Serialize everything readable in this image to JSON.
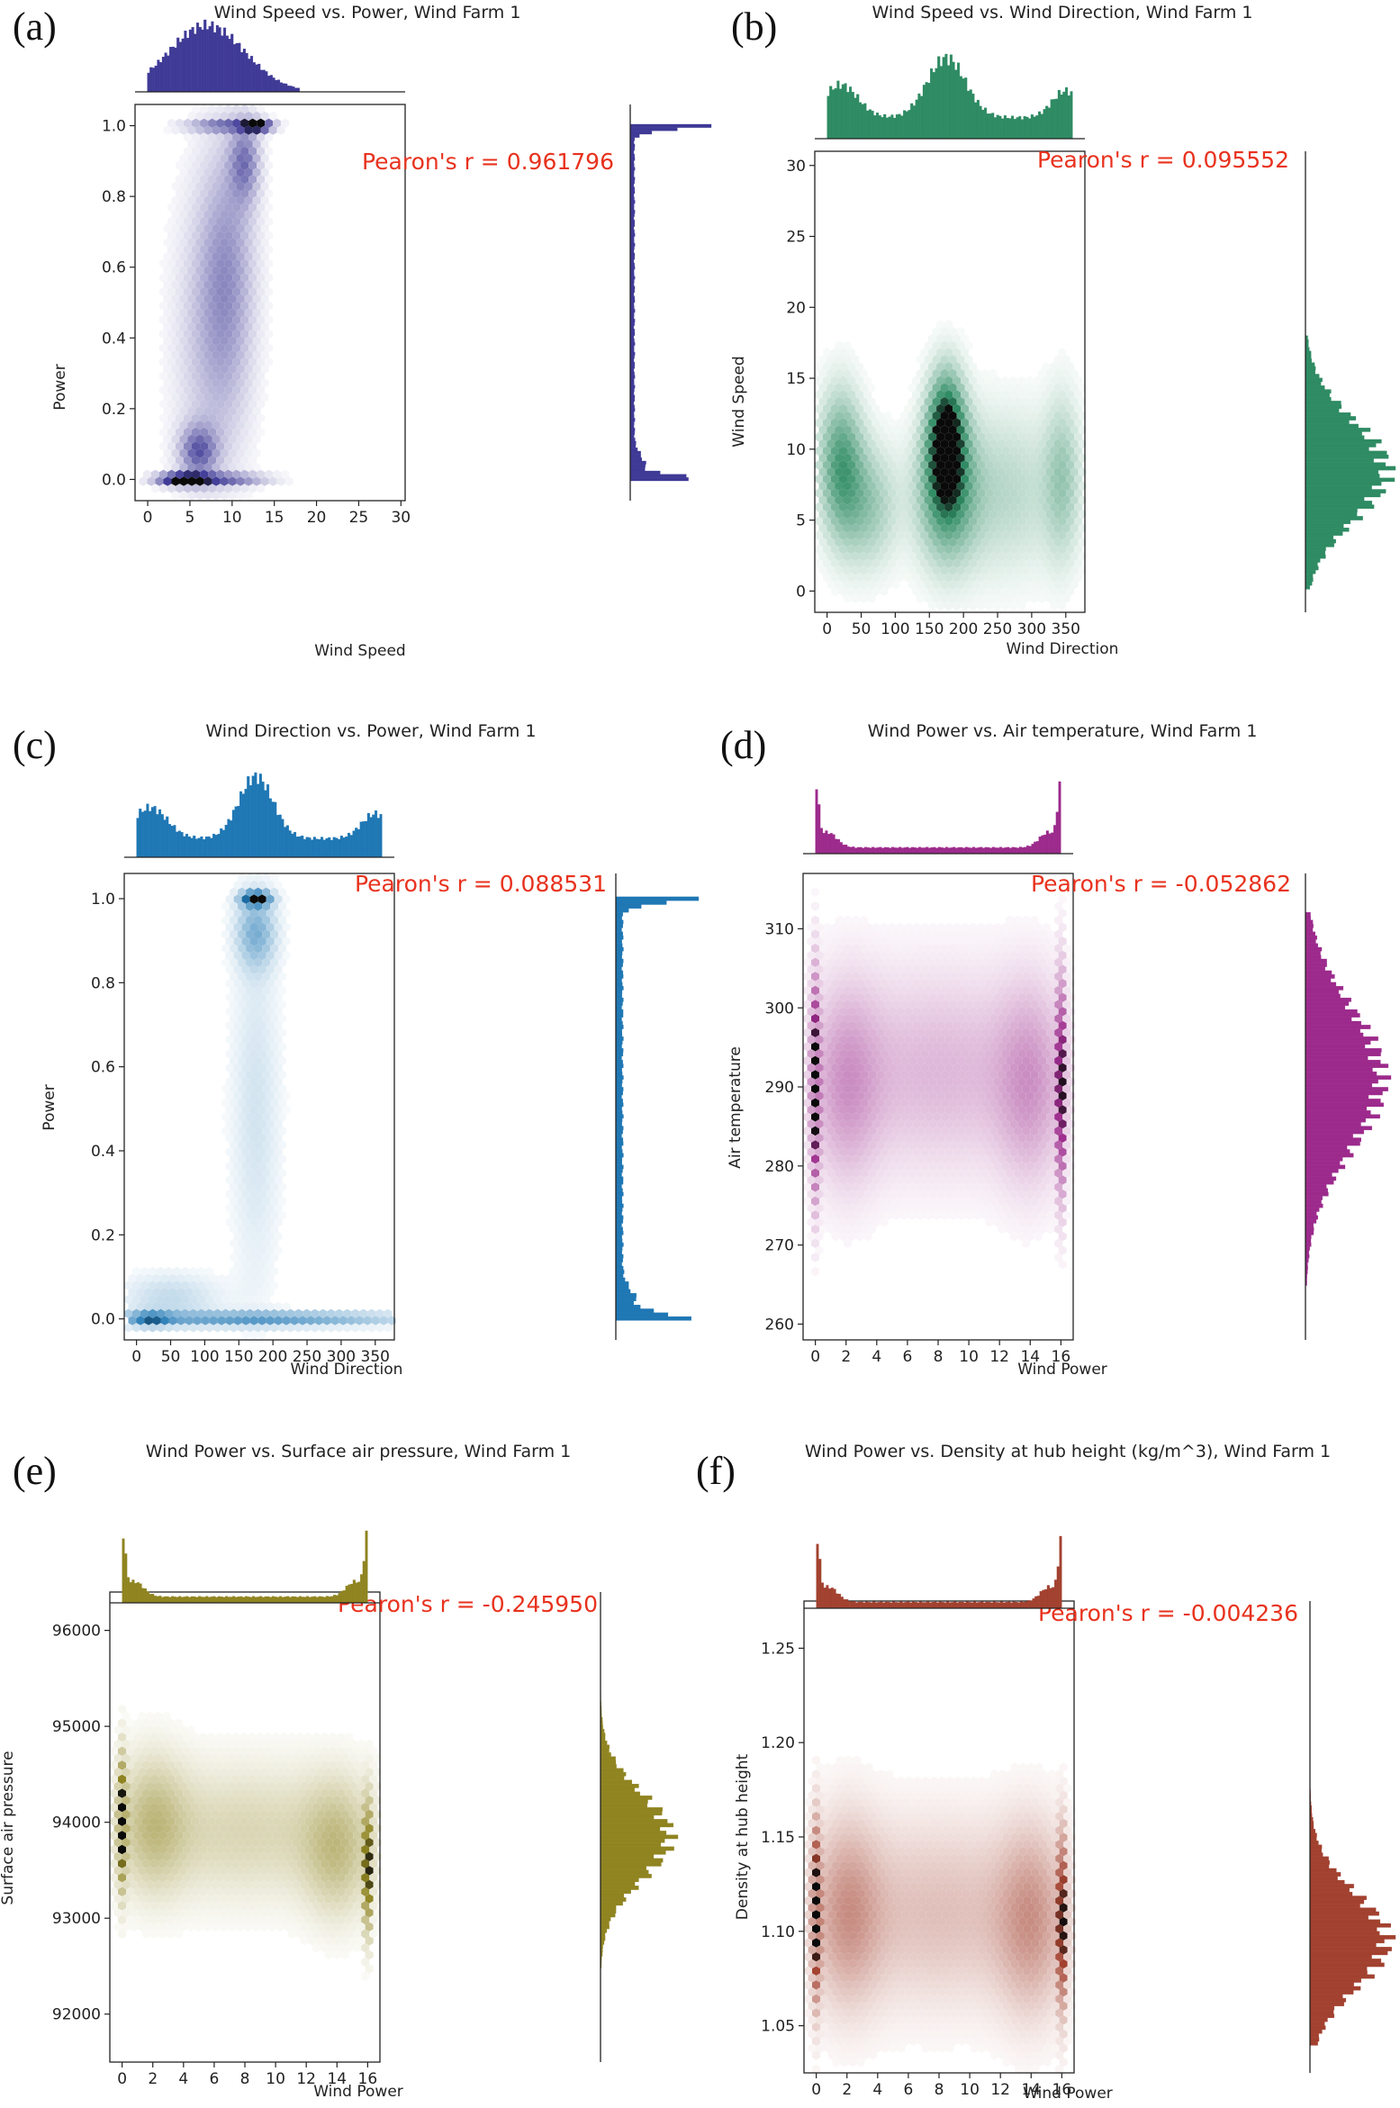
{
  "chart_data": [
    {
      "type": "hexbin",
      "panel_label": "(a)",
      "title": "Wind Speed vs. Power, Wind Farm 1",
      "xlabel": "Wind Speed",
      "ylabel": "Power",
      "xlim": [
        -1.5,
        30.5
      ],
      "ylim": [
        -0.06,
        1.06
      ],
      "xticks": [
        0,
        5,
        10,
        15,
        20,
        25,
        30
      ],
      "yticks": [
        0.0,
        0.2,
        0.4,
        0.6,
        0.8,
        1.0
      ],
      "xtick_labels": [
        "0",
        "5",
        "10",
        "15",
        "20",
        "25",
        "30"
      ],
      "ytick_labels": [
        "0.0",
        "0.2",
        "0.4",
        "0.6",
        "0.8",
        "1.0"
      ],
      "pearson": "Pearon's r = 0.961796",
      "color": "#3f3a96",
      "x_marginal": {
        "range": [
          0,
          18
        ],
        "peaks": [
          [
            7,
            4.5,
            1.0
          ]
        ]
      },
      "y_marginal": {
        "range": [
          0,
          1
        ],
        "peaks": [
          [
            1.0,
            0.012,
            1.0
          ],
          [
            0.0,
            0.012,
            0.85
          ],
          [
            0.04,
            0.03,
            0.15
          ]
        ],
        "base": 0.06
      },
      "clusters": [
        {
          "x": 4,
          "y": 0.0,
          "sx": 2.0,
          "sy": 0.012,
          "w": 1.0
        },
        {
          "x": 9,
          "y": 0.0,
          "sx": 3.5,
          "sy": 0.012,
          "w": 0.55
        },
        {
          "x": 13,
          "y": 1.0,
          "sx": 1.2,
          "sy": 0.012,
          "w": 1.0
        },
        {
          "x": 9,
          "y": 1.0,
          "sx": 3.0,
          "sy": 0.012,
          "w": 0.5
        },
        {
          "x": 11.5,
          "y": 0.9,
          "sx": 1.2,
          "sy": 0.08,
          "w": 0.45
        },
        {
          "x": 9.5,
          "y": 0.6,
          "sx": 2.2,
          "sy": 0.25,
          "w": 0.3
        },
        {
          "x": 6,
          "y": 0.08,
          "sx": 1.5,
          "sy": 0.05,
          "w": 0.55
        },
        {
          "x": 7.5,
          "y": 0.4,
          "sx": 3.0,
          "sy": 0.3,
          "w": 0.22
        }
      ]
    },
    {
      "type": "hexbin",
      "panel_label": "(b)",
      "title": "Wind Speed vs. Wind Direction, Wind Farm 1",
      "xlabel": "Wind Direction",
      "ylabel": "Wind Speed",
      "xlim": [
        -18,
        378
      ],
      "ylim": [
        -1.5,
        31
      ],
      "xticks": [
        0,
        50,
        100,
        150,
        200,
        250,
        300,
        350
      ],
      "yticks": [
        0,
        5,
        10,
        15,
        20,
        25,
        30
      ],
      "xtick_labels": [
        "0",
        "50",
        "100",
        "150",
        "200",
        "250",
        "300",
        "350"
      ],
      "ytick_labels": [
        "0",
        "5",
        "10",
        "15",
        "20",
        "25",
        "30"
      ],
      "pearson": "Pearon's r = 0.095552",
      "color": "#2e8b63",
      "x_marginal": {
        "range": [
          0,
          360
        ],
        "peaks": [
          [
            20,
            25,
            0.55
          ],
          [
            175,
            28,
            1.0
          ],
          [
            350,
            20,
            0.45
          ]
        ],
        "base": 0.35
      },
      "y_marginal": {
        "range": [
          0,
          18
        ],
        "peaks": [
          [
            8.5,
            3.5,
            1.0
          ]
        ]
      },
      "clusters": [
        {
          "x": 175,
          "y": 11,
          "sx": 18,
          "sy": 3.0,
          "w": 1.0
        },
        {
          "x": 175,
          "y": 7,
          "sx": 30,
          "sy": 3.5,
          "w": 0.6
        },
        {
          "x": 20,
          "y": 9,
          "sx": 22,
          "sy": 3.5,
          "w": 0.6
        },
        {
          "x": 60,
          "y": 6,
          "sx": 30,
          "sy": 3.0,
          "w": 0.35
        },
        {
          "x": 260,
          "y": 7,
          "sx": 60,
          "sy": 4.0,
          "w": 0.25
        },
        {
          "x": 345,
          "y": 8,
          "sx": 18,
          "sy": 4.0,
          "w": 0.3
        }
      ]
    },
    {
      "type": "hexbin",
      "panel_label": "(c)",
      "title": "Wind Direction vs. Power, Wind Farm 1",
      "xlabel": "Wind Direction",
      "ylabel": "Power",
      "xlim": [
        -18,
        378
      ],
      "ylim": [
        -0.05,
        1.06
      ],
      "xticks": [
        0,
        50,
        100,
        150,
        200,
        250,
        300,
        350
      ],
      "yticks": [
        0.0,
        0.2,
        0.4,
        0.6,
        0.8,
        1.0
      ],
      "xtick_labels": [
        "0",
        "50",
        "100",
        "150",
        "200",
        "250",
        "300",
        "350"
      ],
      "ytick_labels": [
        "0.0",
        "0.2",
        "0.4",
        "0.6",
        "0.8",
        "1.0"
      ],
      "pearson": "Pearon's r = 0.088531",
      "color": "#1f77b4",
      "x_marginal": {
        "range": [
          0,
          360
        ],
        "peaks": [
          [
            20,
            25,
            0.5
          ],
          [
            175,
            25,
            1.0
          ],
          [
            350,
            20,
            0.4
          ]
        ],
        "base": 0.3
      },
      "y_marginal": {
        "range": [
          0,
          1
        ],
        "peaks": [
          [
            1.0,
            0.012,
            1.0
          ],
          [
            0.0,
            0.012,
            0.95
          ],
          [
            0.04,
            0.03,
            0.2
          ]
        ],
        "base": 0.1
      },
      "clusters": [
        {
          "x": 175,
          "y": 1.0,
          "sx": 15,
          "sy": 0.012,
          "w": 1.0
        },
        {
          "x": 175,
          "y": 0.92,
          "sx": 20,
          "sy": 0.06,
          "w": 0.4
        },
        {
          "x": 180,
          "y": 0.0,
          "sx": 150,
          "sy": 0.012,
          "w": 0.55
        },
        {
          "x": 20,
          "y": 0.0,
          "sx": 20,
          "sy": 0.012,
          "w": 0.5
        },
        {
          "x": 175,
          "y": 0.5,
          "sx": 25,
          "sy": 0.3,
          "w": 0.15
        },
        {
          "x": 50,
          "y": 0.05,
          "sx": 50,
          "sy": 0.04,
          "w": 0.2
        }
      ]
    },
    {
      "type": "hexbin",
      "panel_label": "(d)",
      "title": "Wind Power vs. Air temperature, Wind Farm 1",
      "xlabel": "Wind Power",
      "ylabel": "Air temperature",
      "xlim": [
        -0.8,
        16.8
      ],
      "ylim": [
        258,
        317
      ],
      "xticks": [
        0,
        2,
        4,
        6,
        8,
        10,
        12,
        14,
        16
      ],
      "yticks": [
        260,
        270,
        280,
        290,
        300,
        310
      ],
      "xtick_labels": [
        "0",
        "2",
        "4",
        "6",
        "8",
        "10",
        "12",
        "14",
        "16"
      ],
      "ytick_labels": [
        "260",
        "270",
        "280",
        "290",
        "300",
        "310"
      ],
      "pearson": "Pearon's r = -0.052862",
      "color": "#9c2a8c",
      "x_marginal": {
        "range": [
          0,
          16
        ],
        "peaks": [
          [
            0,
            0.2,
            1.0
          ],
          [
            16,
            0.2,
            1.0
          ],
          [
            0.8,
            0.6,
            0.25
          ],
          [
            15.2,
            0.6,
            0.25
          ]
        ],
        "base": 0.1
      },
      "y_marginal": {
        "range": [
          265,
          312
        ],
        "peaks": [
          [
            291,
            9,
            1.0
          ]
        ]
      },
      "clusters": [
        {
          "x": 0,
          "y": 290,
          "sx": 0.15,
          "sy": 9,
          "w": 1.0
        },
        {
          "x": 16,
          "y": 290,
          "sx": 0.15,
          "sy": 9,
          "w": 1.0
        },
        {
          "x": 8,
          "y": 292,
          "sx": 6,
          "sy": 9,
          "w": 0.25
        },
        {
          "x": 2,
          "y": 290,
          "sx": 1.5,
          "sy": 9,
          "w": 0.25
        },
        {
          "x": 14,
          "y": 290,
          "sx": 1.5,
          "sy": 9,
          "w": 0.25
        }
      ]
    },
    {
      "type": "hexbin",
      "panel_label": "(e)",
      "title": "Wind Power vs. Surface air pressure, Wind Farm 1",
      "xlabel": "Wind Power",
      "ylabel": "Surface air pressure",
      "xlim": [
        -0.8,
        16.8
      ],
      "ylim": [
        91500,
        96400
      ],
      "xticks": [
        0,
        2,
        4,
        6,
        8,
        10,
        12,
        14,
        16
      ],
      "yticks": [
        92000,
        93000,
        94000,
        95000,
        96000
      ],
      "xtick_labels": [
        "0",
        "2",
        "4",
        "6",
        "8",
        "10",
        "12",
        "14",
        "16"
      ],
      "ytick_labels": [
        "92000",
        "93000",
        "94000",
        "95000",
        "96000"
      ],
      "pearson": "Pearon's r = -0.245950",
      "color": "#8f8420",
      "x_marginal": {
        "range": [
          0,
          16
        ],
        "peaks": [
          [
            0,
            0.2,
            1.0
          ],
          [
            16,
            0.2,
            1.0
          ],
          [
            0.8,
            0.6,
            0.25
          ],
          [
            15.2,
            0.6,
            0.25
          ]
        ],
        "base": 0.1
      },
      "y_marginal": {
        "range": [
          92500,
          95500
        ],
        "peaks": [
          [
            93850,
            450,
            1.0
          ]
        ]
      },
      "clusters": [
        {
          "x": 0,
          "y": 94000,
          "sx": 0.15,
          "sy": 450,
          "w": 1.0
        },
        {
          "x": 16,
          "y": 93500,
          "sx": 0.15,
          "sy": 450,
          "w": 1.0
        },
        {
          "x": 8,
          "y": 93900,
          "sx": 6,
          "sy": 500,
          "w": 0.25
        },
        {
          "x": 2,
          "y": 94000,
          "sx": 1.5,
          "sy": 500,
          "w": 0.3
        },
        {
          "x": 14,
          "y": 93700,
          "sx": 1.5,
          "sy": 500,
          "w": 0.3
        }
      ]
    },
    {
      "type": "hexbin",
      "panel_label": "(f)",
      "title": "Wind Power vs. Density at hub height (kg/m^3), Wind Farm 1",
      "xlabel": "Wind Power",
      "ylabel": "Density at hub height",
      "xlim": [
        -0.8,
        16.8
      ],
      "ylim": [
        1.025,
        1.275
      ],
      "xticks": [
        0,
        2,
        4,
        6,
        8,
        10,
        12,
        14,
        16
      ],
      "yticks": [
        1.05,
        1.1,
        1.15,
        1.2,
        1.25
      ],
      "xtick_labels": [
        "0",
        "2",
        "4",
        "6",
        "8",
        "10",
        "12",
        "14",
        "16"
      ],
      "ytick_labels": [
        "1.05",
        "1.10",
        "1.15",
        "1.20",
        "1.25"
      ],
      "pearson": "Pearon's r = -0.004236",
      "color": "#a2412f",
      "x_marginal": {
        "range": [
          0,
          16
        ],
        "peaks": [
          [
            0,
            0.2,
            1.0
          ],
          [
            16,
            0.2,
            1.0
          ],
          [
            0.8,
            0.6,
            0.25
          ],
          [
            15.2,
            0.6,
            0.25
          ]
        ],
        "base": 0.1
      },
      "y_marginal": {
        "range": [
          1.04,
          1.19
        ],
        "peaks": [
          [
            1.095,
            0.025,
            1.0
          ]
        ]
      },
      "clusters": [
        {
          "x": 0,
          "y": 1.11,
          "sx": 0.15,
          "sy": 0.03,
          "w": 1.0
        },
        {
          "x": 16,
          "y": 1.105,
          "sx": 0.15,
          "sy": 0.03,
          "w": 1.0
        },
        {
          "x": 8,
          "y": 1.11,
          "sx": 6,
          "sy": 0.035,
          "w": 0.25
        },
        {
          "x": 2,
          "y": 1.11,
          "sx": 1.5,
          "sy": 0.035,
          "w": 0.3
        },
        {
          "x": 14,
          "y": 1.105,
          "sx": 1.5,
          "sy": 0.035,
          "w": 0.3
        }
      ]
    }
  ]
}
